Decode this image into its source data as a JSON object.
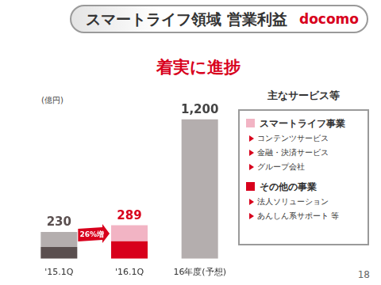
{
  "chart_data": {
    "type": "bar",
    "title": "スマートライフ領域 営業利益",
    "subtitle": "着実に進捗",
    "logo": "docomo",
    "page": 18,
    "y_label": "(億円)",
    "categories": [
      "'15.1Q",
      "'16.1Q",
      "16年度(予想)"
    ],
    "series": [
      {
        "name": "その他の事業",
        "color": "#d8001c",
        "colors": [
          "#5a4f4f",
          "#d8001c",
          "#b4aeae"
        ],
        "values": [
          100,
          150,
          null
        ],
        "items": [
          "法人ソリューション",
          "あんしん系サポート 等"
        ]
      },
      {
        "name": "スマートライフ事業",
        "color": "#f2b4c4",
        "colors": [
          "#b4aeae",
          "#f2b4c4",
          "#b4aeae"
        ],
        "values": [
          130,
          139,
          1200
        ],
        "items": [
          "コンテンツサービス",
          "金融・決済サービス",
          "グループ会社"
        ]
      }
    ],
    "stacked": true,
    "totals": [
      230,
      289,
      1200
    ],
    "total_labels": [
      "230",
      "289",
      "1,200"
    ],
    "annotations": [
      {
        "text": "26%増"
      }
    ],
    "legend_title": "主なサービス等",
    "legend": "right",
    "ylim": [
      0,
      1300
    ],
    "grid": false,
    "tick_labels": "x"
  }
}
